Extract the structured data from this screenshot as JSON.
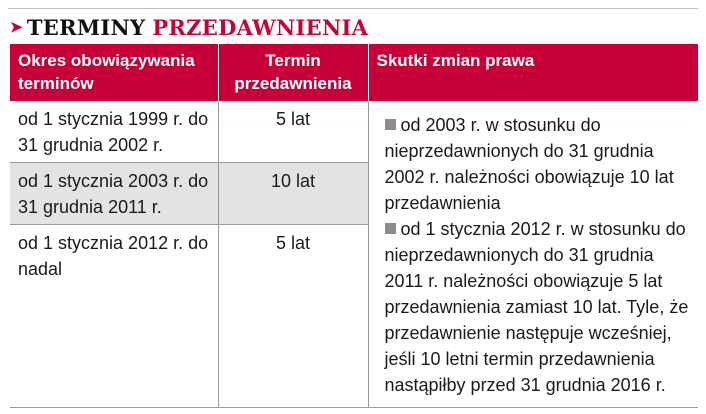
{
  "title": {
    "part1": "TERMINY",
    "part2": "PRZEDAWNIENIA",
    "arrow_icon": "right-arrow-icon"
  },
  "colors": {
    "accent": "#c8003a",
    "shade": "#e3e3e3",
    "bullet": "#8c8c8c"
  },
  "table": {
    "headers": [
      "Okres obowiązywania terminów",
      "Termin przedawnienia",
      "Skutki zmian prawa"
    ],
    "rows": [
      {
        "period": "od 1 stycznia 1999 r. do 31 grudnia 2002 r.",
        "term": "5 lat"
      },
      {
        "period": "od 1 stycznia 2003 r. do 31 grudnia 2011 r.",
        "term": "10 lat"
      },
      {
        "period": "od 1 stycznia 2012 r. do nadal",
        "term": "5 lat"
      }
    ],
    "effects": [
      "od 2003 r. w stosunku do nieprzedawnionych do 31 grudnia 2002 r. należności obowiązuje 10 lat przedawnienia",
      "od 1 stycznia 2012 r. w stosunku do nieprzedawnionych do 31 grudnia 2011 r. należności obowiązuje 5 lat przedawnienia zamiast 10 lat. Tyle, że przedawnienie następuje wcześniej, jeśli 10 letni termin przedawnienia nastąpiłby przed 31 grudnia 2016 r."
    ]
  }
}
